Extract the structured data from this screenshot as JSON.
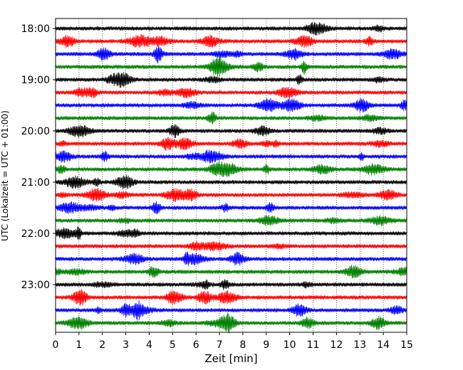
{
  "chart_data": {
    "type": "line",
    "title": "",
    "xlabel": "Zeit  [min]",
    "ylabel": "UTC (Lokalzeit = UTC + 01:00)",
    "xlim": [
      0,
      15
    ],
    "x_ticks": [
      0,
      1,
      2,
      3,
      4,
      5,
      6,
      7,
      8,
      9,
      10,
      11,
      12,
      13,
      14,
      15
    ],
    "y_tick_labels": [
      "18:00",
      "19:00",
      "20:00",
      "21:00",
      "22:00",
      "23:00"
    ],
    "trace_interval_min": 15,
    "grid": "vertical dotted",
    "colors": [
      "#000000",
      "#ff0000",
      "#0000ff",
      "#008000"
    ],
    "traces": [
      {
        "start": "18:00",
        "color": "#000000"
      },
      {
        "start": "18:15",
        "color": "#ff0000"
      },
      {
        "start": "18:30",
        "color": "#0000ff"
      },
      {
        "start": "18:45",
        "color": "#008000"
      },
      {
        "start": "19:00",
        "color": "#000000"
      },
      {
        "start": "19:15",
        "color": "#ff0000"
      },
      {
        "start": "19:30",
        "color": "#0000ff"
      },
      {
        "start": "19:45",
        "color": "#008000"
      },
      {
        "start": "20:00",
        "color": "#000000"
      },
      {
        "start": "20:15",
        "color": "#ff0000"
      },
      {
        "start": "20:30",
        "color": "#0000ff"
      },
      {
        "start": "20:45",
        "color": "#008000"
      },
      {
        "start": "21:00",
        "color": "#000000"
      },
      {
        "start": "21:15",
        "color": "#ff0000"
      },
      {
        "start": "21:30",
        "color": "#0000ff"
      },
      {
        "start": "21:45",
        "color": "#008000"
      },
      {
        "start": "22:00",
        "color": "#000000"
      },
      {
        "start": "22:15",
        "color": "#ff0000"
      },
      {
        "start": "22:30",
        "color": "#0000ff"
      },
      {
        "start": "22:45",
        "color": "#008000"
      },
      {
        "start": "23:00",
        "color": "#000000"
      },
      {
        "start": "23:15",
        "color": "#ff0000"
      },
      {
        "start": "23:30",
        "color": "#0000ff"
      },
      {
        "start": "23:45",
        "color": "#008000"
      }
    ]
  }
}
